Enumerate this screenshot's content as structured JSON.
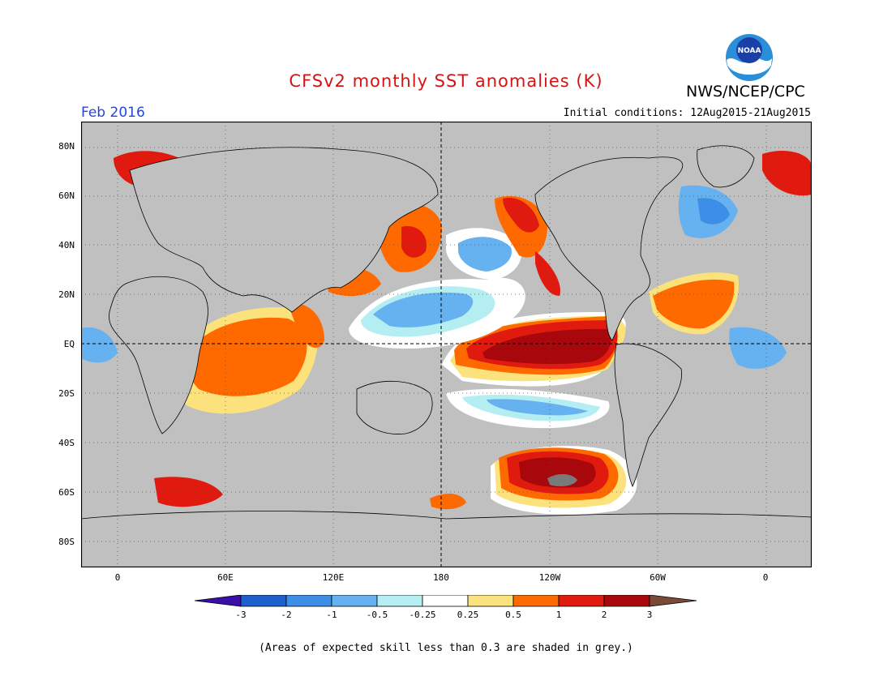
{
  "header": {
    "title": "CFSv2 monthly SST anomalies (K)",
    "agency": "NWS/NCEP/CPC",
    "logo_text": "NOAA",
    "month": "Feb 2016",
    "initial_conditions": "Initial conditions: 12Aug2015-21Aug2015"
  },
  "axes": {
    "lat_labels": [
      "80N",
      "60N",
      "40N",
      "20N",
      "EQ",
      "20S",
      "40S",
      "60S",
      "80S"
    ],
    "lon_labels": [
      "0",
      "60E",
      "120E",
      "180",
      "120W",
      "60W",
      "0"
    ]
  },
  "colorbar": {
    "labels": [
      "-3",
      "-2",
      "-1",
      "-0.5",
      "-0.25",
      "0.25",
      "0.5",
      "1",
      "2",
      "3"
    ],
    "colors": [
      "#3a0fa8",
      "#1e5fd0",
      "#3c8ee6",
      "#66b2f0",
      "#b4eef2",
      "#ffffff",
      "#fce27c",
      "#ff6a00",
      "#e01a0e",
      "#a8070c",
      "#7a4a36"
    ]
  },
  "colors": {
    "land_grey": "#c0c0c0",
    "title_red": "#d41414",
    "month_blue": "#2646d6"
  },
  "footnote": "(Areas of expected skill less than 0.3 are shaded in grey.)"
}
